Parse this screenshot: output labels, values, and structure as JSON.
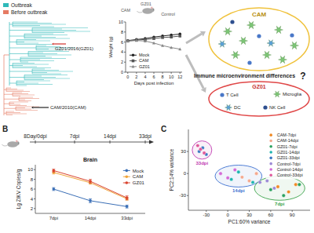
{
  "chart_data": [
    {
      "type": "line",
      "x": [
        0,
        2,
        4,
        6,
        8,
        10,
        12
      ],
      "xlim": [
        -0.5,
        12.5
      ],
      "xticks": [
        0,
        2,
        4,
        6,
        8,
        10,
        12
      ],
      "ylim": [
        0,
        10
      ],
      "yticks": [
        0,
        2,
        4,
        6,
        8,
        10
      ],
      "x_label": "Days post infection",
      "y_label": "Weight (g)",
      "legend": "bottom-left",
      "grid": false,
      "series": [
        {
          "name": "Mock",
          "color": "#222222",
          "marker": "circle",
          "values": [
            6.3,
            6.5,
            6.7,
            7.0,
            7.2,
            7.4,
            7.6
          ]
        },
        {
          "name": "CAM",
          "color": "#555555",
          "marker": "square",
          "values": [
            6.2,
            6.4,
            6.5,
            6.7,
            6.9,
            7.0,
            7.2
          ]
        },
        {
          "name": "GZ01",
          "color": "#888888",
          "marker": "triangle",
          "values": [
            6.2,
            6.3,
            6.2,
            5.8,
            5.3,
            4.9,
            4.6
          ]
        }
      ]
    },
    {
      "type": "line",
      "title": "Brain",
      "categories": [
        "7dpi",
        "14dpi",
        "33dpi"
      ],
      "ylim": [
        1,
        11
      ],
      "yticks": [
        2,
        4,
        6,
        8,
        10
      ],
      "y_label": "Lg ZIKV Copies/g",
      "legend": "top-right",
      "grid": false,
      "series": [
        {
          "name": "Mock",
          "color": "#3b6fb6",
          "marker": "circle",
          "values": [
            6.0,
            3.6,
            2.4
          ],
          "errors": [
            0.3,
            0.4,
            0.3
          ]
        },
        {
          "name": "CAM",
          "color": "#f0a43a",
          "marker": "circle",
          "values": [
            9.4,
            7.3,
            4.0
          ],
          "errors": [
            0.3,
            0.3,
            0.3
          ]
        },
        {
          "name": "GZ01",
          "color": "#d9442f",
          "marker": "circle",
          "values": [
            9.8,
            7.6,
            4.2
          ],
          "errors": [
            0.3,
            0.4,
            0.4
          ]
        }
      ]
    },
    {
      "type": "scatter",
      "x_label": "PC1:60% variance",
      "y_label": "PC2:14% variance",
      "xlim": [
        -55,
        115
      ],
      "xticks": [
        -30,
        0,
        30,
        60,
        90
      ],
      "ylim": [
        -50,
        60
      ],
      "yticks": [
        -30,
        0,
        30
      ],
      "legend": "top-right",
      "grid": false,
      "marker": "circle",
      "series": [
        {
          "name": "CAM-7dpi",
          "color": "#f08a24",
          "x": [
            70,
            85,
            95
          ],
          "values": [
            -18,
            -25,
            -15
          ]
        },
        {
          "name": "CAM-14dpi",
          "color": "#f4a88e",
          "x": [
            20,
            30,
            40
          ],
          "values": [
            -5,
            -10,
            0
          ]
        },
        {
          "name": "GZ01-7dpi",
          "color": "#2ca25f",
          "x": [
            60,
            78,
            100
          ],
          "values": [
            -22,
            -30,
            -15
          ]
        },
        {
          "name": "GZ01-14dpi",
          "color": "#1fb5b0",
          "x": [
            5,
            15,
            35
          ],
          "values": [
            -8,
            2,
            -12
          ]
        },
        {
          "name": "GZ01-33dpi",
          "color": "#3a78c2",
          "x": [
            -40,
            -35,
            -30
          ],
          "values": [
            30,
            35,
            26
          ]
        },
        {
          "name": "Control-7dpi",
          "color": "#9d8ad6",
          "x": [
            55,
            65,
            45
          ],
          "values": [
            -10,
            -20,
            -12
          ]
        },
        {
          "name": "Control-14dpi",
          "color": "#d36ad6",
          "x": [
            -10,
            0,
            10
          ],
          "values": [
            0,
            -6,
            5
          ]
        },
        {
          "name": "Control-33dpi",
          "color": "#e0589b",
          "x": [
            -42,
            -33,
            -38
          ],
          "values": [
            38,
            28,
            33
          ]
        }
      ],
      "annotations": [
        {
          "text": "33dpi",
          "color": "#c13cb1"
        },
        {
          "text": "14dpi",
          "color": "#3b6fd0"
        },
        {
          "text": "7dpi",
          "color": "#3aa34a"
        }
      ]
    }
  ],
  "panels": [
    "B",
    "C"
  ],
  "tree": {
    "legend": [
      {
        "name": "Outbreak",
        "color": "#2fb9b9"
      },
      {
        "name": "Before outbreak",
        "color": "#e57a63"
      }
    ],
    "labels": [
      "GZ01/2016(GZ01)",
      "CAM/2010(CAM)"
    ]
  },
  "mouse_groups": [
    "CAM",
    "GZ01",
    "Control"
  ],
  "schematic": {
    "title": "Immune microenvironment differences",
    "question": "?",
    "groups": [
      {
        "label": "CAM",
        "color": "#f0c23c"
      },
      {
        "label": "GZ01",
        "color": "#e04848"
      }
    ],
    "cells": [
      "T Cell",
      "DC",
      "NK Cell",
      "Microglia"
    ]
  },
  "timeline": {
    "labels": [
      "8Day/0dpi",
      "7dpi",
      "14dpi",
      "33dpi"
    ]
  }
}
